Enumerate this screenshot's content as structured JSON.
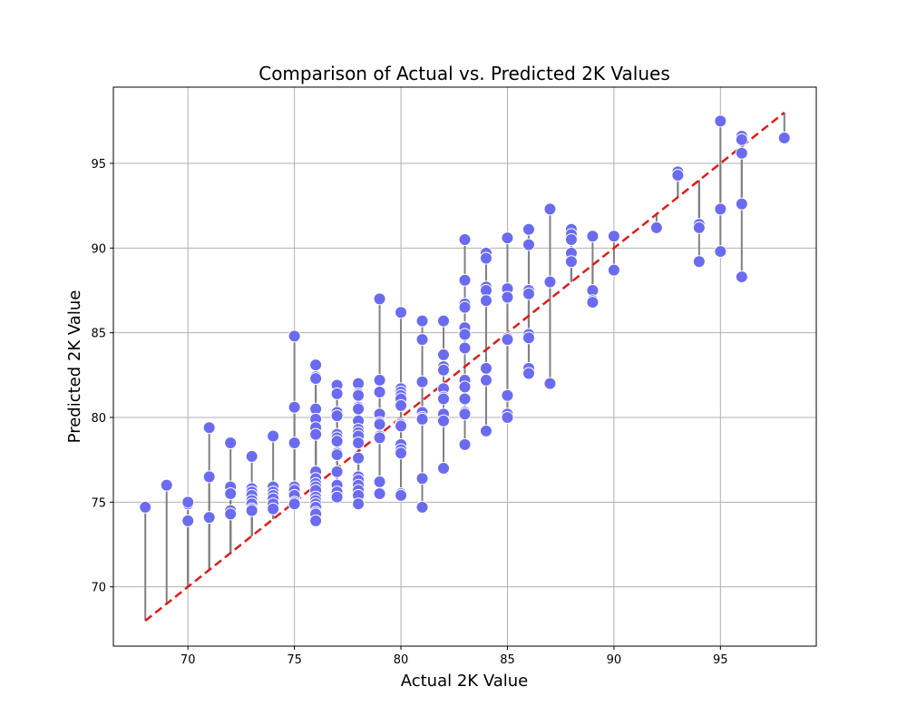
{
  "chart_data": {
    "type": "scatter",
    "title": "Comparison of Actual vs. Predicted 2K Values",
    "xlabel": "Actual 2K Value",
    "ylabel": "Predicted 2K Value",
    "xlim": [
      66.5,
      99.5
    ],
    "ylim": [
      66.5,
      99.5
    ],
    "xticks": [
      70,
      75,
      80,
      85,
      90,
      95
    ],
    "yticks": [
      70,
      75,
      80,
      85,
      90,
      95
    ],
    "grid": true,
    "colors": {
      "point_fill": "#6b6bf0",
      "point_stroke": "#ffffff",
      "residual_line": "#808080",
      "ideal_line": "#e01b1b",
      "grid": "#b0b0b0"
    },
    "ideal_line": [
      [
        68,
        68
      ],
      [
        98,
        98
      ]
    ],
    "series": [
      {
        "points": [
          [
            68,
            74.7
          ],
          [
            69,
            76.0
          ],
          [
            70,
            74.9
          ],
          [
            70,
            75.0
          ],
          [
            70,
            73.9
          ],
          [
            71,
            79.4
          ],
          [
            71,
            76.5
          ],
          [
            71,
            74.1
          ],
          [
            72,
            78.5
          ],
          [
            72,
            75.9
          ],
          [
            72,
            75.5
          ],
          [
            72,
            74.5
          ],
          [
            72,
            74.3
          ],
          [
            73,
            77.7
          ],
          [
            73,
            75.8
          ],
          [
            73,
            75.6
          ],
          [
            73,
            75.4
          ],
          [
            73,
            75.1
          ],
          [
            73,
            74.9
          ],
          [
            73,
            74.6
          ],
          [
            73,
            74.5
          ],
          [
            74,
            78.9
          ],
          [
            74,
            75.9
          ],
          [
            74,
            75.6
          ],
          [
            74,
            75.4
          ],
          [
            74,
            75.2
          ],
          [
            74,
            74.9
          ],
          [
            74,
            74.6
          ],
          [
            75,
            84.8
          ],
          [
            75,
            80.6
          ],
          [
            75,
            78.5
          ],
          [
            75,
            75.9
          ],
          [
            75,
            75.7
          ],
          [
            75,
            75.4
          ],
          [
            75,
            75.0
          ],
          [
            75,
            74.9
          ],
          [
            76,
            83.1
          ],
          [
            76,
            82.4
          ],
          [
            76,
            82.3
          ],
          [
            76,
            80.5
          ],
          [
            76,
            79.9
          ],
          [
            76,
            79.4
          ],
          [
            76,
            79.0
          ],
          [
            76,
            76.8
          ],
          [
            76,
            76.4
          ],
          [
            76,
            76.1
          ],
          [
            76,
            75.9
          ],
          [
            76,
            75.7
          ],
          [
            76,
            75.3
          ],
          [
            76,
            75.1
          ],
          [
            76,
            74.9
          ],
          [
            76,
            74.7
          ],
          [
            76,
            74.4
          ],
          [
            76,
            74.3
          ],
          [
            76,
            73.9
          ],
          [
            77,
            81.9
          ],
          [
            77,
            81.4
          ],
          [
            77,
            80.3
          ],
          [
            77,
            80.1
          ],
          [
            77,
            79.0
          ],
          [
            77,
            78.8
          ],
          [
            77,
            78.6
          ],
          [
            77,
            77.9
          ],
          [
            77,
            77.8
          ],
          [
            77,
            76.8
          ],
          [
            77,
            76.0
          ],
          [
            77,
            75.6
          ],
          [
            77,
            75.3
          ],
          [
            78,
            82.0
          ],
          [
            78,
            81.4
          ],
          [
            78,
            81.3
          ],
          [
            78,
            80.6
          ],
          [
            78,
            80.5
          ],
          [
            78,
            79.8
          ],
          [
            78,
            79.3
          ],
          [
            78,
            79.1
          ],
          [
            78,
            78.9
          ],
          [
            78,
            78.5
          ],
          [
            78,
            77.6
          ],
          [
            78,
            76.5
          ],
          [
            78,
            76.3
          ],
          [
            78,
            76.0
          ],
          [
            78,
            75.7
          ],
          [
            78,
            75.4
          ],
          [
            78,
            74.9
          ],
          [
            79,
            87.0
          ],
          [
            79,
            82.2
          ],
          [
            79,
            81.5
          ],
          [
            79,
            80.2
          ],
          [
            79,
            79.7
          ],
          [
            79,
            79.6
          ],
          [
            79,
            78.9
          ],
          [
            79,
            78.8
          ],
          [
            79,
            76.2
          ],
          [
            79,
            75.5
          ],
          [
            80,
            86.2
          ],
          [
            80,
            81.7
          ],
          [
            80,
            81.5
          ],
          [
            80,
            81.3
          ],
          [
            80,
            81.1
          ],
          [
            80,
            80.7
          ],
          [
            80,
            79.6
          ],
          [
            80,
            79.5
          ],
          [
            80,
            78.4
          ],
          [
            80,
            78.1
          ],
          [
            80,
            77.9
          ],
          [
            80,
            75.5
          ],
          [
            80,
            75.4
          ],
          [
            81,
            85.7
          ],
          [
            81,
            84.6
          ],
          [
            81,
            82.1
          ],
          [
            81,
            80.3
          ],
          [
            81,
            80.0
          ],
          [
            81,
            79.9
          ],
          [
            81,
            76.4
          ],
          [
            81,
            74.7
          ],
          [
            82,
            85.7
          ],
          [
            82,
            83.7
          ],
          [
            82,
            83.0
          ],
          [
            82,
            82.8
          ],
          [
            82,
            81.7
          ],
          [
            82,
            81.2
          ],
          [
            82,
            81.1
          ],
          [
            82,
            80.2
          ],
          [
            82,
            79.8
          ],
          [
            82,
            77.0
          ],
          [
            83,
            90.5
          ],
          [
            83,
            88.1
          ],
          [
            83,
            86.7
          ],
          [
            83,
            86.5
          ],
          [
            83,
            85.3
          ],
          [
            83,
            84.9
          ],
          [
            83,
            84.1
          ],
          [
            83,
            82.2
          ],
          [
            83,
            81.8
          ],
          [
            83,
            81.1
          ],
          [
            83,
            80.3
          ],
          [
            83,
            80.2
          ],
          [
            83,
            78.4
          ],
          [
            84,
            89.7
          ],
          [
            84,
            89.4
          ],
          [
            84,
            87.7
          ],
          [
            84,
            87.5
          ],
          [
            84,
            86.9
          ],
          [
            84,
            82.9
          ],
          [
            84,
            82.2
          ],
          [
            84,
            79.2
          ],
          [
            85,
            90.6
          ],
          [
            85,
            87.6
          ],
          [
            85,
            87.1
          ],
          [
            85,
            84.7
          ],
          [
            85,
            84.6
          ],
          [
            85,
            81.3
          ],
          [
            85,
            80.2
          ],
          [
            85,
            80.0
          ],
          [
            86,
            91.1
          ],
          [
            86,
            90.2
          ],
          [
            86,
            87.5
          ],
          [
            86,
            87.3
          ],
          [
            86,
            84.9
          ],
          [
            86,
            84.7
          ],
          [
            86,
            82.9
          ],
          [
            86,
            82.6
          ],
          [
            87,
            92.3
          ],
          [
            87,
            88.0
          ],
          [
            87,
            82.0
          ],
          [
            88,
            91.1
          ],
          [
            88,
            90.8
          ],
          [
            88,
            90.5
          ],
          [
            88,
            89.7
          ],
          [
            88,
            89.2
          ],
          [
            89,
            90.7
          ],
          [
            89,
            87.5
          ],
          [
            89,
            86.9
          ],
          [
            89,
            86.8
          ],
          [
            90,
            90.7
          ],
          [
            90,
            88.7
          ],
          [
            92,
            91.2
          ],
          [
            93,
            94.5
          ],
          [
            93,
            94.3
          ],
          [
            94,
            91.4
          ],
          [
            94,
            91.2
          ],
          [
            94,
            89.2
          ],
          [
            95,
            97.5
          ],
          [
            95,
            92.3
          ],
          [
            95,
            89.8
          ],
          [
            96,
            96.6
          ],
          [
            96,
            96.4
          ],
          [
            96,
            95.6
          ],
          [
            96,
            92.6
          ],
          [
            96,
            88.3
          ],
          [
            98,
            96.5
          ]
        ]
      }
    ]
  }
}
